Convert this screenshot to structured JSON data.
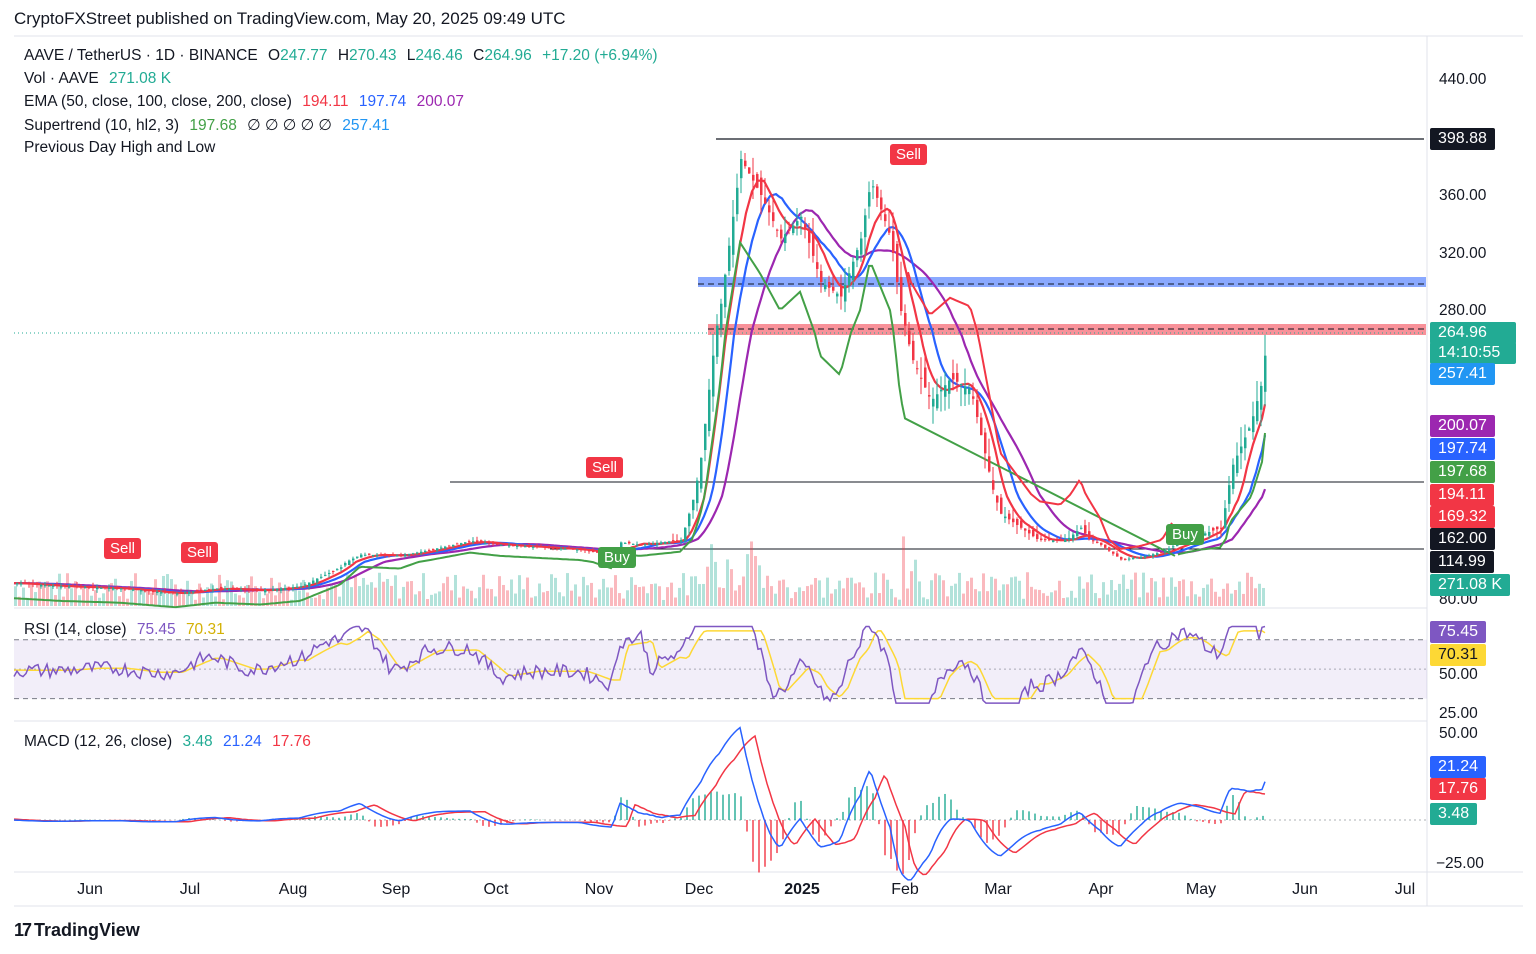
{
  "header": {
    "publisher": "CryptoFXStreet published on TradingView.com, May 20, 2025 09:49 UTC"
  },
  "legend": {
    "symbol": "AAVE / TetherUS · 1D · BINANCE",
    "o_label": "O",
    "o": "247.77",
    "h_label": "H",
    "h": "270.43",
    "l_label": "L",
    "l": "246.46",
    "c_label": "C",
    "c": "264.96",
    "change": "+17.20 (+6.94%)",
    "vol_label": "Vol · AAVE",
    "vol": "271.08 K",
    "ema_label": "EMA (50, close, 100, close, 200, close)",
    "ema50": "194.11",
    "ema100": "197.74",
    "ema200": "200.07",
    "supertrend_label": "Supertrend (10, hl2, 3)",
    "supertrend_up": "197.68",
    "supertrend_dots": "∅ ∅ ∅ ∅ ∅",
    "supertrend_down": "257.41",
    "pdhl_label": "Previous Day High and Low"
  },
  "price_axis": {
    "ticks": [
      "440.00",
      "360.00",
      "320.00",
      "280.00",
      "80.00"
    ],
    "tags": [
      {
        "text": "398.88",
        "color": "#131722"
      },
      {
        "text": "264.96",
        "color": "#22ab94"
      },
      {
        "text": "14:10:55",
        "color": "#22ab94"
      },
      {
        "text": "257.41",
        "color": "#2196f3"
      },
      {
        "text": "200.07",
        "color": "#9c27b0"
      },
      {
        "text": "197.74",
        "color": "#2962ff"
      },
      {
        "text": "197.68",
        "color": "#43a047"
      },
      {
        "text": "194.11",
        "color": "#f23645"
      },
      {
        "text": "169.32",
        "color": "#f23645"
      },
      {
        "text": "162.00",
        "color": "#131722"
      },
      {
        "text": "114.99",
        "color": "#131722"
      },
      {
        "text": "271.08 K",
        "color": "#22ab94"
      }
    ]
  },
  "rsi": {
    "label": "RSI (14, close)",
    "value": "75.45",
    "ma": "70.31",
    "ticks": [
      "50.00",
      "25.00"
    ],
    "tags": [
      {
        "text": "75.45",
        "color": "#7e57c2"
      },
      {
        "text": "70.31",
        "color": "#fdd835"
      }
    ]
  },
  "macd": {
    "label": "MACD (12, 26, close)",
    "hist": "3.48",
    "macd": "21.24",
    "signal": "17.76",
    "ticks": [
      "50.00",
      "−25.00"
    ],
    "tags": [
      {
        "text": "21.24",
        "color": "#2962ff"
      },
      {
        "text": "17.76",
        "color": "#f23645"
      },
      {
        "text": "3.48",
        "color": "#22ab94"
      }
    ]
  },
  "time_axis": [
    "Jun",
    "Jul",
    "Aug",
    "Sep",
    "Oct",
    "Nov",
    "Dec",
    "2025",
    "Feb",
    "Mar",
    "Apr",
    "May",
    "Jun",
    "Jul"
  ],
  "signals": {
    "sell": "Sell",
    "buy": "Buy"
  },
  "footer": {
    "brand": "TradingView",
    "logo_mark": "17"
  },
  "colors": {
    "up": "#22ab94",
    "down": "#f23645",
    "ema50": "#f23645",
    "ema100": "#2962ff",
    "ema200": "#9c27b0",
    "st_up": "#43a047",
    "st_down": "#f23645",
    "rsi": "#7e57c2",
    "rsi_ma": "#fdd835"
  },
  "chart_data": {
    "type": "candlestick",
    "title": "AAVE / TetherUS · 1D · BINANCE",
    "x": [
      "2024-06",
      "2024-07",
      "2024-08",
      "2024-09",
      "2024-10",
      "2024-11",
      "2024-12",
      "2025-01",
      "2025-02",
      "2025-03",
      "2025-04",
      "2025-05"
    ],
    "series": [
      {
        "name": "Close (approx)",
        "values": [
          90,
          95,
          100,
          135,
          150,
          160,
          370,
          300,
          240,
          210,
          150,
          265
        ]
      },
      {
        "name": "EMA 50",
        "values": [
          92,
          92,
          95,
          120,
          140,
          150,
          250,
          300,
          270,
          210,
          170,
          194
        ]
      },
      {
        "name": "EMA 100",
        "values": [
          92,
          92,
          93,
          110,
          125,
          135,
          200,
          255,
          262,
          235,
          195,
          198
        ]
      },
      {
        "name": "EMA 200",
        "values": [
          90,
          90,
          91,
          100,
          115,
          125,
          160,
          200,
          220,
          225,
          205,
          200
        ]
      }
    ],
    "horizontal_levels": [
      398.88,
      300,
      264.96,
      162.0,
      114.99
    ],
    "ylim": [
      80,
      440
    ],
    "rsi": {
      "value": 75.45,
      "ma": 70.31,
      "ylim": [
        25,
        80
      ]
    },
    "macd": {
      "hist": 3.48,
      "macd": 21.24,
      "signal": 17.76,
      "ylim": [
        -25,
        50
      ]
    },
    "grid": false
  }
}
